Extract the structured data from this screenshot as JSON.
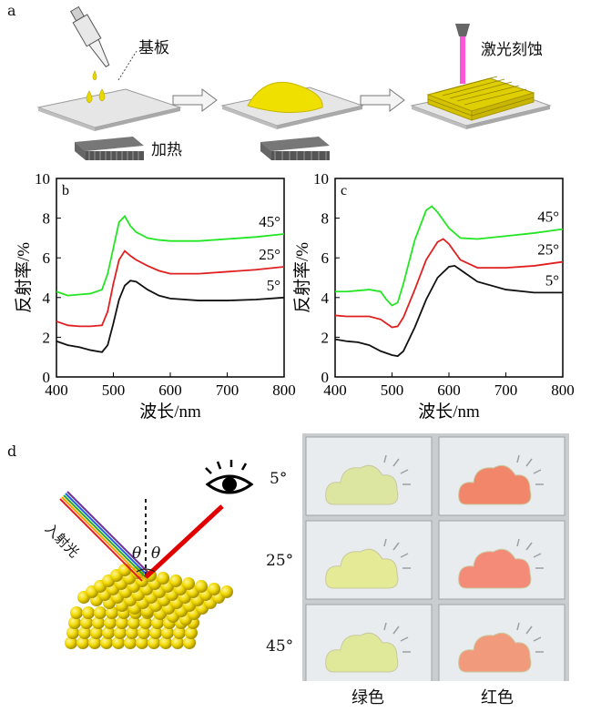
{
  "panel_a": {
    "label": "a",
    "substrate_label": "基板",
    "heating_label": "加热",
    "laser_label": "激光刻蚀"
  },
  "panel_d": {
    "label": "d",
    "incident_label": "入射光",
    "theta": "θ",
    "angles": [
      "5°",
      "25°",
      "45°"
    ],
    "col_labels": [
      "绿色",
      "红色"
    ]
  },
  "chart_data": [
    {
      "type": "line",
      "label": "b",
      "xlabel": "波长/nm",
      "ylabel": "反射率/%",
      "xlim": [
        400,
        800
      ],
      "ylim": [
        0,
        10
      ],
      "xticks": [
        400,
        500,
        600,
        700,
        800
      ],
      "yticks": [
        0,
        2,
        4,
        6,
        8,
        10
      ],
      "series": [
        {
          "name": "45°",
          "color": "#22e622",
          "x": [
            400,
            420,
            440,
            460,
            480,
            490,
            500,
            510,
            520,
            530,
            540,
            560,
            580,
            600,
            650,
            700,
            750,
            800
          ],
          "y": [
            4.3,
            4.1,
            4.15,
            4.2,
            4.4,
            5.2,
            6.5,
            7.8,
            8.1,
            7.6,
            7.3,
            7.0,
            6.9,
            6.85,
            6.85,
            6.95,
            7.05,
            7.2
          ]
        },
        {
          "name": "25°",
          "color": "#e02020",
          "x": [
            400,
            420,
            440,
            460,
            480,
            490,
            500,
            510,
            520,
            530,
            540,
            560,
            580,
            600,
            650,
            700,
            750,
            800
          ],
          "y": [
            2.8,
            2.6,
            2.55,
            2.55,
            2.6,
            3.3,
            4.7,
            5.9,
            6.35,
            6.1,
            5.9,
            5.6,
            5.35,
            5.2,
            5.2,
            5.3,
            5.4,
            5.55
          ]
        },
        {
          "name": "5°",
          "color": "#111111",
          "x": [
            400,
            420,
            440,
            460,
            480,
            490,
            500,
            510,
            520,
            530,
            540,
            560,
            580,
            600,
            650,
            700,
            750,
            800
          ],
          "y": [
            1.8,
            1.6,
            1.5,
            1.35,
            1.25,
            1.6,
            2.7,
            3.9,
            4.6,
            4.85,
            4.8,
            4.4,
            4.1,
            3.95,
            3.85,
            3.85,
            3.9,
            4.0
          ]
        }
      ]
    },
    {
      "type": "line",
      "label": "c",
      "xlabel": "波长/nm",
      "ylabel": "反射率/%",
      "xlim": [
        400,
        800
      ],
      "ylim": [
        0,
        10
      ],
      "xticks": [
        400,
        500,
        600,
        700,
        800
      ],
      "yticks": [
        0,
        2,
        4,
        6,
        8,
        10
      ],
      "series": [
        {
          "name": "45°",
          "color": "#22e622",
          "x": [
            400,
            420,
            440,
            460,
            480,
            490,
            500,
            510,
            520,
            540,
            560,
            570,
            580,
            600,
            620,
            650,
            700,
            750,
            800
          ],
          "y": [
            4.3,
            4.3,
            4.35,
            4.4,
            4.3,
            3.9,
            3.6,
            3.75,
            4.7,
            6.9,
            8.4,
            8.6,
            8.3,
            7.5,
            7.0,
            6.95,
            7.1,
            7.25,
            7.45
          ]
        },
        {
          "name": "25°",
          "color": "#e02020",
          "x": [
            400,
            420,
            440,
            460,
            480,
            500,
            510,
            520,
            540,
            560,
            580,
            590,
            600,
            620,
            650,
            700,
            750,
            800
          ],
          "y": [
            3.1,
            3.05,
            3.05,
            3.05,
            2.9,
            2.5,
            2.55,
            3.0,
            4.4,
            5.9,
            6.8,
            6.95,
            6.7,
            5.9,
            5.5,
            5.5,
            5.6,
            5.8
          ]
        },
        {
          "name": "5°",
          "color": "#111111",
          "x": [
            400,
            420,
            440,
            460,
            480,
            500,
            510,
            520,
            540,
            560,
            580,
            600,
            610,
            620,
            650,
            700,
            750,
            800
          ],
          "y": [
            1.9,
            1.8,
            1.75,
            1.6,
            1.3,
            1.1,
            1.05,
            1.3,
            2.5,
            3.9,
            5.0,
            5.55,
            5.6,
            5.4,
            4.8,
            4.4,
            4.25,
            4.25
          ]
        }
      ]
    }
  ]
}
